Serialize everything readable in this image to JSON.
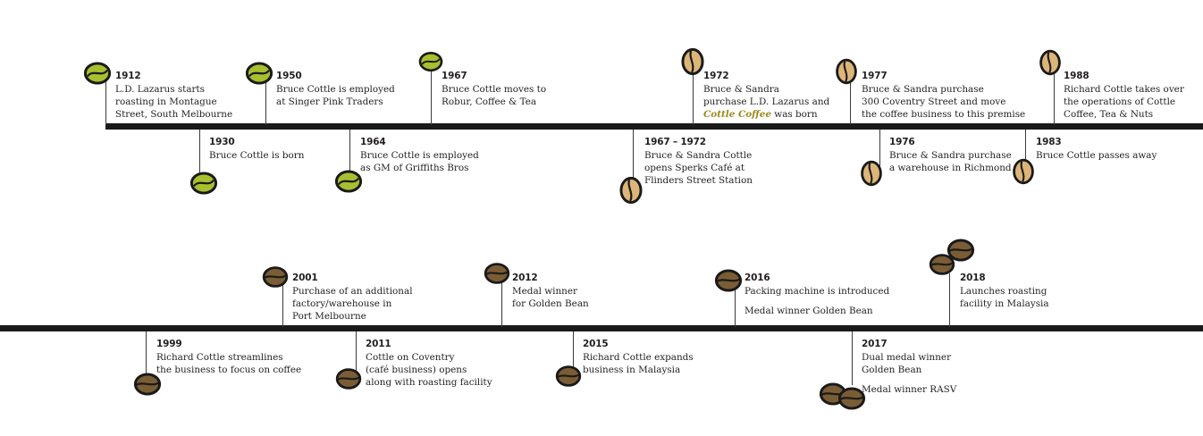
{
  "colors": {
    "line": "#1a1a1a",
    "green_bean": "#a8bf2f",
    "light_bean": "#dcb578",
    "dark_bean": "#7a5d35"
  },
  "events": [
    {
      "year": "1912",
      "lines": [
        "L.D. Lazarus starts",
        "roasting in Montague",
        "Street, South Melbourne"
      ],
      "bean": "green"
    },
    {
      "year": "1930",
      "lines": [
        "Bruce Cottle is born"
      ],
      "bean": "green"
    },
    {
      "year": "1950",
      "lines": [
        "Bruce Cottle is employed",
        "at Singer Pink Traders"
      ],
      "bean": "green"
    },
    {
      "year": "1964",
      "lines": [
        "Bruce Cottle is employed",
        "as GM of Griffiths Bros"
      ],
      "bean": "green"
    },
    {
      "year": "1967",
      "lines": [
        "Bruce Cottle moves to",
        "Robur, Coffee & Tea"
      ],
      "bean": "green"
    },
    {
      "year": "1967 – 1972",
      "lines": [
        "Bruce & Sandra Cottle",
        "opens Sperks Café at",
        "Flinders Street Station"
      ],
      "bean": "light"
    },
    {
      "year": "1972",
      "line1": "Bruce & Sandra",
      "line2": "purchase L.D. Lazarus and",
      "accent": "Cottle Coffee",
      "line3_rest": " was born",
      "bean": "light"
    },
    {
      "year": "1977",
      "lines": [
        "Bruce & Sandra purchase",
        "300 Coventry Street and move",
        "the coffee business to this premise"
      ],
      "bean": "light"
    },
    {
      "year": "1976",
      "lines": [
        "Bruce & Sandra purchase",
        "a warehouse in Richmond"
      ],
      "bean": "light"
    },
    {
      "year": "1988",
      "lines": [
        "Richard Cottle takes over",
        "the operations of Cottle",
        "Coffee, Tea & Nuts"
      ],
      "bean": "light"
    },
    {
      "year": "1983",
      "lines": [
        "Bruce Cottle passes away"
      ],
      "bean": "light"
    },
    {
      "year": "2001",
      "lines": [
        "Purchase of an additional",
        "factory/warehouse in",
        "Port Melbourne"
      ],
      "bean": "dark"
    },
    {
      "year": "1999",
      "lines": [
        "Richard Cottle streamlines",
        "the business to focus on coffee"
      ],
      "bean": "dark"
    },
    {
      "year": "2011",
      "lines": [
        "Cottle on Coventry",
        "(café business) opens",
        "along with roasting facility"
      ],
      "bean": "dark"
    },
    {
      "year": "2012",
      "lines": [
        "Medal winner",
        "for Golden Bean"
      ],
      "bean": "dark"
    },
    {
      "year": "2015",
      "lines": [
        "Richard Cottle expands",
        "business in Malaysia"
      ],
      "bean": "dark"
    },
    {
      "year": "2016",
      "lines": [
        "Packing machine is introduced"
      ],
      "extra": "Medal winner Golden Bean",
      "bean": "dark"
    },
    {
      "year": "2017",
      "lines": [
        "Dual medal winner",
        "Golden Bean"
      ],
      "extra": "Medal winner RASV",
      "bean": "dark"
    },
    {
      "year": "2018",
      "lines": [
        "Launches roasting",
        "facility in Malaysia"
      ],
      "bean": "dark"
    }
  ]
}
